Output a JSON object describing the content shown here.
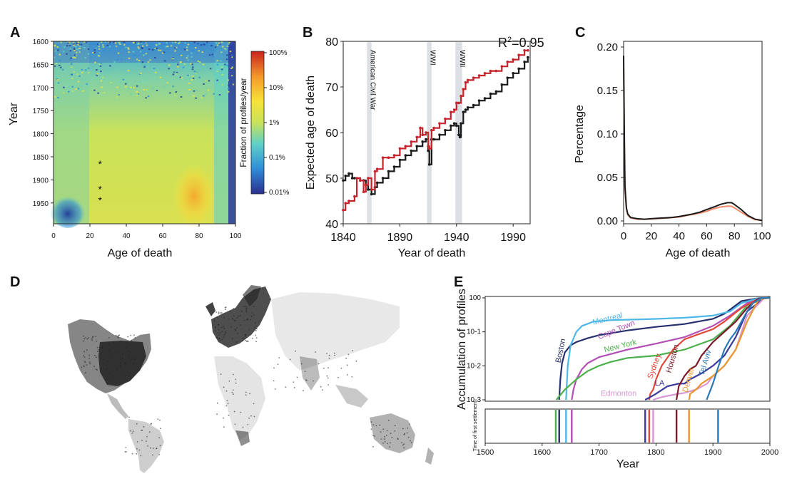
{
  "panel_letters": [
    "A",
    "B",
    "C",
    "D",
    "E"
  ],
  "chart_data": [
    {
      "panel": "A",
      "type": "heatmap",
      "xlabel": "Age of death",
      "ylabel": "Year",
      "x_ticks": [
        "0",
        "20",
        "40",
        "60",
        "80",
        "100"
      ],
      "y_ticks": [
        "1600",
        "1650",
        "1700",
        "1750",
        "1800",
        "1850",
        "1900",
        "1950"
      ],
      "xlim": [
        0,
        100
      ],
      "ylim": [
        1600,
        1995
      ],
      "colorbar": {
        "label": "Fraction of profiles/year",
        "ticks": [
          "100%",
          "10%",
          "1%",
          "0.1%",
          "0.01%"
        ],
        "scale": "log",
        "colors": [
          "#2b2f8f",
          "#2f8fd8",
          "#5fd0c8",
          "#c9e25a",
          "#f7e23a",
          "#f59a2a",
          "#c8231e"
        ]
      },
      "asterisks": [
        {
          "age": 24,
          "year": 1862,
          "symbol": "*"
        },
        {
          "age": 24,
          "year": 1917,
          "symbol": "*"
        },
        {
          "age": 24,
          "year": 1941,
          "symbol": "*"
        }
      ],
      "asterisk_color": "#b0303a"
    },
    {
      "panel": "B",
      "type": "line",
      "xlabel": "Year of death",
      "ylabel": "Expected age of death",
      "x_ticks": [
        "1840",
        "1890",
        "1940",
        "1990"
      ],
      "y_ticks": [
        "40",
        "50",
        "60",
        "70",
        "80"
      ],
      "xlim": [
        1840,
        2005
      ],
      "ylim": [
        40,
        80
      ],
      "annotation": "R²=0.95",
      "annotation_base": "R",
      "annotation_sup": "2",
      "annotation_rest": "=0.95",
      "shaded_events": [
        {
          "label": "American Civil War",
          "start": 1861,
          "end": 1865
        },
        {
          "label": "WWI",
          "start": 1914,
          "end": 1918
        },
        {
          "label": "WWII",
          "start": 1939,
          "end": 1945
        }
      ],
      "series": [
        {
          "color": "#1a1a1a",
          "x": [
            1840,
            1842,
            1845,
            1848,
            1850,
            1855,
            1858,
            1860,
            1862,
            1865,
            1868,
            1870,
            1875,
            1880,
            1885,
            1890,
            1895,
            1900,
            1905,
            1910,
            1913,
            1915,
            1916,
            1918,
            1920,
            1925,
            1930,
            1935,
            1938,
            1940,
            1942,
            1943,
            1944,
            1946,
            1948,
            1950,
            1955,
            1960,
            1965,
            1970,
            1975,
            1980,
            1985,
            1990,
            1995,
            2000,
            2003
          ],
          "y": [
            49.5,
            50.5,
            51,
            50,
            50,
            49.5,
            49.5,
            48.5,
            47.5,
            46.5,
            48,
            49,
            50,
            51.5,
            52.5,
            54,
            55,
            56,
            57,
            58,
            58.5,
            56,
            53,
            58.5,
            58.5,
            59.5,
            60.5,
            61.5,
            62,
            61.5,
            59.5,
            59,
            62,
            64.5,
            65,
            65.5,
            66,
            67,
            67.5,
            68.5,
            69,
            70.5,
            72,
            73,
            74,
            75.5,
            76.5
          ]
        },
        {
          "color": "#c8232c",
          "x": [
            1840,
            1842,
            1845,
            1850,
            1852,
            1855,
            1858,
            1860,
            1862,
            1865,
            1868,
            1870,
            1875,
            1880,
            1885,
            1890,
            1895,
            1900,
            1905,
            1908,
            1910,
            1913,
            1915,
            1916,
            1918,
            1920,
            1925,
            1930,
            1935,
            1938,
            1940,
            1942,
            1944,
            1946,
            1948,
            1950,
            1955,
            1960,
            1965,
            1970,
            1975,
            1980,
            1985,
            1990,
            1995,
            2000,
            2003
          ],
          "y": [
            43,
            44.5,
            45,
            46,
            50,
            49.5,
            47,
            48.5,
            50,
            47.5,
            51.5,
            52,
            54.5,
            54.5,
            55,
            56.5,
            57,
            58,
            59,
            61,
            59.5,
            60,
            57,
            56.5,
            60.5,
            61,
            62,
            63,
            64.5,
            65,
            66.5,
            66.5,
            68,
            69.5,
            71,
            71.5,
            72,
            72.5,
            73,
            73.5,
            73.5,
            74.5,
            75.5,
            76,
            77,
            78,
            78
          ]
        }
      ]
    },
    {
      "panel": "C",
      "type": "line",
      "xlabel": "Age of death",
      "ylabel": "Percentage",
      "x_ticks": [
        "0",
        "20",
        "40",
        "60",
        "80",
        "100"
      ],
      "y_ticks": [
        "0.00",
        "0.05",
        "0.10",
        "0.15",
        "0.20"
      ],
      "xlim": [
        0,
        100
      ],
      "ylim": [
        0,
        0.2
      ],
      "series": [
        {
          "color": "#1a1a1a",
          "x": [
            0,
            0.5,
            1,
            2,
            3,
            5,
            8,
            10,
            15,
            20,
            25,
            30,
            35,
            40,
            45,
            50,
            55,
            60,
            65,
            70,
            75,
            78,
            80,
            85,
            90,
            95,
            100
          ],
          "y": [
            0.19,
            0.1,
            0.04,
            0.015,
            0.008,
            0.004,
            0.003,
            0.0025,
            0.002,
            0.0025,
            0.003,
            0.0035,
            0.004,
            0.005,
            0.0065,
            0.008,
            0.01,
            0.013,
            0.016,
            0.019,
            0.021,
            0.021,
            0.019,
            0.013,
            0.006,
            0.002,
            0.0005
          ]
        },
        {
          "color": "#f08a6a",
          "x": [
            0,
            0.5,
            1,
            2,
            3,
            5,
            8,
            10,
            15,
            20,
            25,
            30,
            35,
            40,
            45,
            50,
            55,
            60,
            65,
            70,
            75,
            78,
            80,
            85,
            90,
            95,
            100
          ],
          "y": [
            0.175,
            0.09,
            0.035,
            0.014,
            0.007,
            0.0035,
            0.0025,
            0.002,
            0.002,
            0.0022,
            0.0028,
            0.0032,
            0.0038,
            0.0045,
            0.006,
            0.0075,
            0.009,
            0.011,
            0.014,
            0.016,
            0.017,
            0.0168,
            0.015,
            0.01,
            0.005,
            0.0015,
            0.0004
          ]
        }
      ]
    },
    {
      "panel": "E",
      "type": "line",
      "xlabel": "Year",
      "ylabel": "Accumulation of profiles",
      "secondary_ylabel": "Time of first settlement",
      "x_ticks": [
        "1500",
        "1600",
        "1700",
        "1800",
        "1900",
        "2000"
      ],
      "y_ticks": [
        "10-3",
        "10-2",
        "10-1",
        "100"
      ],
      "xlim": [
        1500,
        2000
      ],
      "ylim": [
        0.001,
        1
      ],
      "yscale": "log",
      "series": [
        {
          "name": "Boston",
          "color": "#27306e",
          "settled": 1630,
          "x": [
            1630,
            1632,
            1635,
            1640,
            1650,
            1660,
            1680,
            1700,
            1750,
            1800,
            1850,
            1900,
            1920,
            1950,
            1980,
            2000
          ],
          "y": [
            0.001,
            0.004,
            0.012,
            0.025,
            0.04,
            0.05,
            0.065,
            0.08,
            0.11,
            0.14,
            0.17,
            0.24,
            0.34,
            0.8,
            0.98,
            1
          ]
        },
        {
          "name": "Montreal",
          "color": "#4db8e8",
          "settled": 1642,
          "x": [
            1642,
            1645,
            1650,
            1660,
            1670,
            1690,
            1720,
            1760,
            1800,
            1850,
            1900,
            1930,
            1950,
            1980,
            2000
          ],
          "y": [
            0.001,
            0.01,
            0.04,
            0.1,
            0.15,
            0.2,
            0.22,
            0.23,
            0.24,
            0.26,
            0.3,
            0.4,
            0.7,
            0.98,
            1
          ]
        },
        {
          "name": "Cape Town",
          "color": "#b24fb4",
          "settled": 1652,
          "x": [
            1652,
            1655,
            1660,
            1670,
            1680,
            1700,
            1750,
            1800,
            1850,
            1900,
            1930,
            1960,
            1990,
            2000
          ],
          "y": [
            0.001,
            0.002,
            0.004,
            0.008,
            0.012,
            0.018,
            0.03,
            0.045,
            0.07,
            0.15,
            0.3,
            0.7,
            0.98,
            1
          ]
        },
        {
          "name": "New York",
          "color": "#4cb04c",
          "settled": 1624,
          "x": [
            1625,
            1640,
            1660,
            1680,
            1700,
            1720,
            1750,
            1800,
            1850,
            1900,
            1930,
            1960,
            1990,
            2000
          ],
          "y": [
            0.001,
            0.002,
            0.004,
            0.007,
            0.01,
            0.013,
            0.017,
            0.02,
            0.03,
            0.06,
            0.15,
            0.6,
            0.98,
            1
          ]
        },
        {
          "name": "Sydney",
          "color": "#e04a3a",
          "settled": 1788,
          "x": [
            1788,
            1790,
            1795,
            1800,
            1810,
            1830,
            1850,
            1870,
            1900,
            1920,
            1950,
            1980,
            2000
          ],
          "y": [
            0.001,
            0.0015,
            0.002,
            0.004,
            0.01,
            0.03,
            0.06,
            0.08,
            0.12,
            0.2,
            0.5,
            0.95,
            1
          ]
        },
        {
          "name": "LA",
          "color": "#3a3a9a",
          "settled": 1781,
          "x": [
            1781,
            1790,
            1800,
            1820,
            1840,
            1850,
            1860,
            1880,
            1900,
            1920,
            1940,
            1960,
            1990,
            2000
          ],
          "y": [
            0.001,
            0.0012,
            0.0015,
            0.0025,
            0.003,
            0.003,
            0.004,
            0.006,
            0.01,
            0.02,
            0.07,
            0.4,
            0.98,
            1
          ]
        },
        {
          "name": "Edmonton",
          "color": "#d996d4",
          "settled": 1795,
          "x": [
            1795,
            1810,
            1830,
            1850,
            1870,
            1890,
            1900,
            1920,
            1940,
            1960,
            1990,
            2000
          ],
          "y": [
            0.001,
            0.0012,
            0.0014,
            0.0016,
            0.002,
            0.003,
            0.005,
            0.01,
            0.03,
            0.3,
            0.98,
            1
          ]
        },
        {
          "name": "Houston",
          "color": "#7a1a2a",
          "settled": 1836,
          "x": [
            1836,
            1840,
            1850,
            1860,
            1870,
            1880,
            1900,
            1920,
            1940,
            1960,
            1980,
            2000
          ],
          "y": [
            0.001,
            0.0025,
            0.005,
            0.008,
            0.01,
            0.02,
            0.05,
            0.1,
            0.2,
            0.5,
            0.95,
            1
          ]
        },
        {
          "name": "Denver",
          "color": "#e8962a",
          "settled": 1858,
          "x": [
            1858,
            1860,
            1870,
            1880,
            1900,
            1920,
            1940,
            1960,
            1980,
            2000
          ],
          "y": [
            0.001,
            0.0015,
            0.002,
            0.003,
            0.005,
            0.01,
            0.03,
            0.2,
            0.9,
            1
          ]
        },
        {
          "name": "Tel Aviv",
          "color": "#2a78b8",
          "settled": 1909,
          "x": [
            1889,
            1900,
            1910,
            1920,
            1930,
            1940,
            1950,
            1960,
            1970,
            1985,
            2000
          ],
          "y": [
            0.001,
            0.003,
            0.01,
            0.03,
            0.06,
            0.1,
            0.2,
            0.4,
            0.7,
            0.98,
            1
          ]
        }
      ]
    }
  ]
}
